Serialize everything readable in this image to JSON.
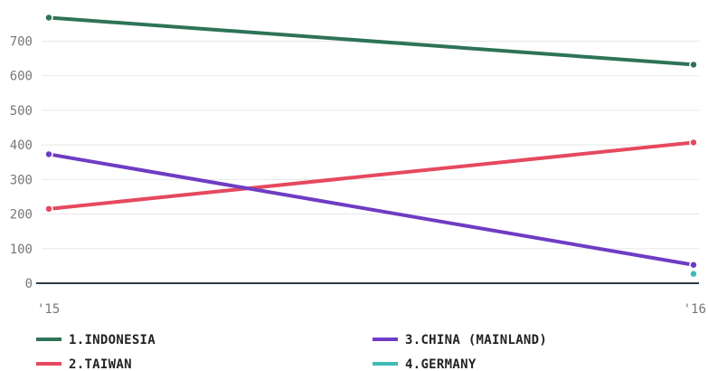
{
  "chart_data": {
    "type": "line",
    "title": "",
    "xlabel": "",
    "ylabel": "",
    "x": [
      "'15",
      "'16"
    ],
    "ylim": [
      0,
      800
    ],
    "yticks": [
      0,
      100,
      200,
      300,
      400,
      500,
      600,
      700
    ],
    "grid": true,
    "legend_position": "bottom",
    "series": [
      {
        "name": "1.INDONESIA",
        "color": "#2e7357",
        "values": [
          768,
          632
        ]
      },
      {
        "name": "2.TAIWAN",
        "color": "#e5495f",
        "values": [
          215,
          407
        ]
      },
      {
        "name": "3.CHINA (MAINLAND)",
        "color": "#6e3cc4",
        "values": [
          373,
          53
        ]
      },
      {
        "name": "4.GERMANY",
        "color": "#3fbcb5",
        "values": [
          null,
          27
        ]
      }
    ]
  }
}
